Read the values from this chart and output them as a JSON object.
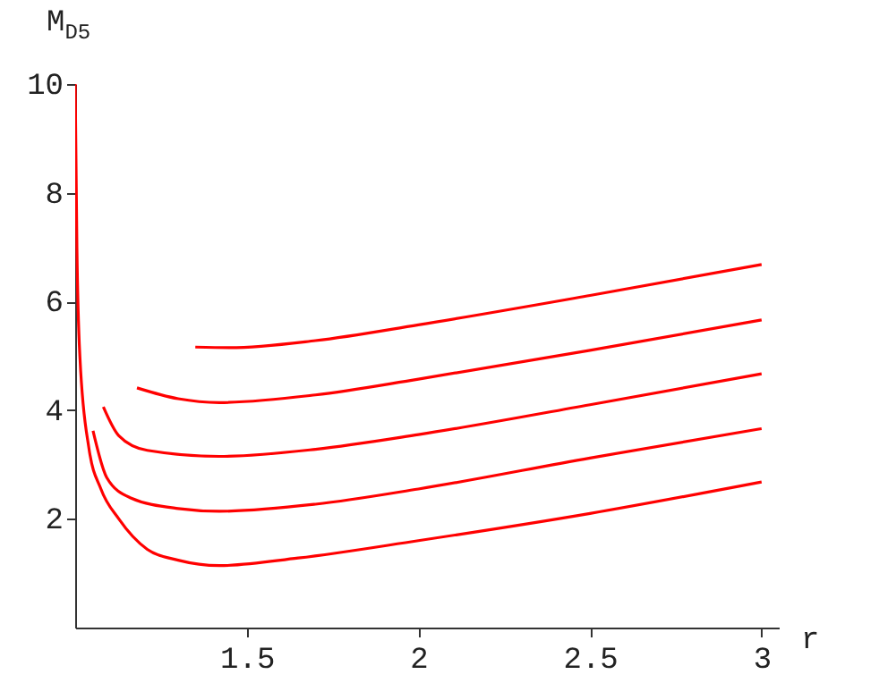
{
  "chart_data": {
    "type": "line",
    "xlabel": "r",
    "ylabel": "M$_{D5}$",
    "xlim": [
      1,
      3.05
    ],
    "ylim": [
      0,
      10
    ],
    "xticks": [
      1.5,
      2,
      2.5,
      3
    ],
    "yticks": [
      2,
      4,
      6,
      8,
      10
    ],
    "grid": false,
    "legend": false,
    "marker": "none",
    "line_style": "solid",
    "series": [
      {
        "color": "#ff0000",
        "x": [
          1.0,
          1.005,
          1.014,
          1.04,
          1.075,
          1.127,
          1.21,
          1.3,
          1.42,
          1.65,
          2.0,
          2.5,
          3.0
        ],
        "values": [
          10,
          7,
          4.95,
          3.3,
          2.55,
          2.0,
          1.44,
          1.24,
          1.14,
          1.28,
          1.6,
          2.1,
          2.68
        ]
      },
      {
        "color": "#ff0000",
        "x": [
          1.052,
          1.092,
          1.16,
          1.3,
          1.42,
          1.7,
          2.0,
          2.5,
          3.0
        ],
        "values": [
          3.62,
          2.76,
          2.39,
          2.19,
          2.14,
          2.27,
          2.55,
          3.12,
          3.66
        ]
      },
      {
        "color": "#ff0000",
        "x": [
          1.082,
          1.127,
          1.21,
          1.42,
          1.7,
          2.0,
          2.5,
          3.0
        ],
        "values": [
          4.06,
          3.53,
          3.26,
          3.15,
          3.28,
          3.55,
          4.1,
          4.67
        ]
      },
      {
        "color": "#ff0000",
        "x": [
          1.18,
          1.3,
          1.42,
          1.7,
          2.0,
          2.5,
          3.0
        ],
        "values": [
          4.41,
          4.21,
          4.14,
          4.28,
          4.57,
          5.1,
          5.66
        ]
      },
      {
        "color": "#ff0000",
        "x": [
          1.35,
          1.45,
          1.7,
          2.0,
          2.5,
          3.0
        ],
        "values": [
          5.16,
          5.15,
          5.28,
          5.57,
          6.11,
          6.68
        ]
      }
    ]
  }
}
